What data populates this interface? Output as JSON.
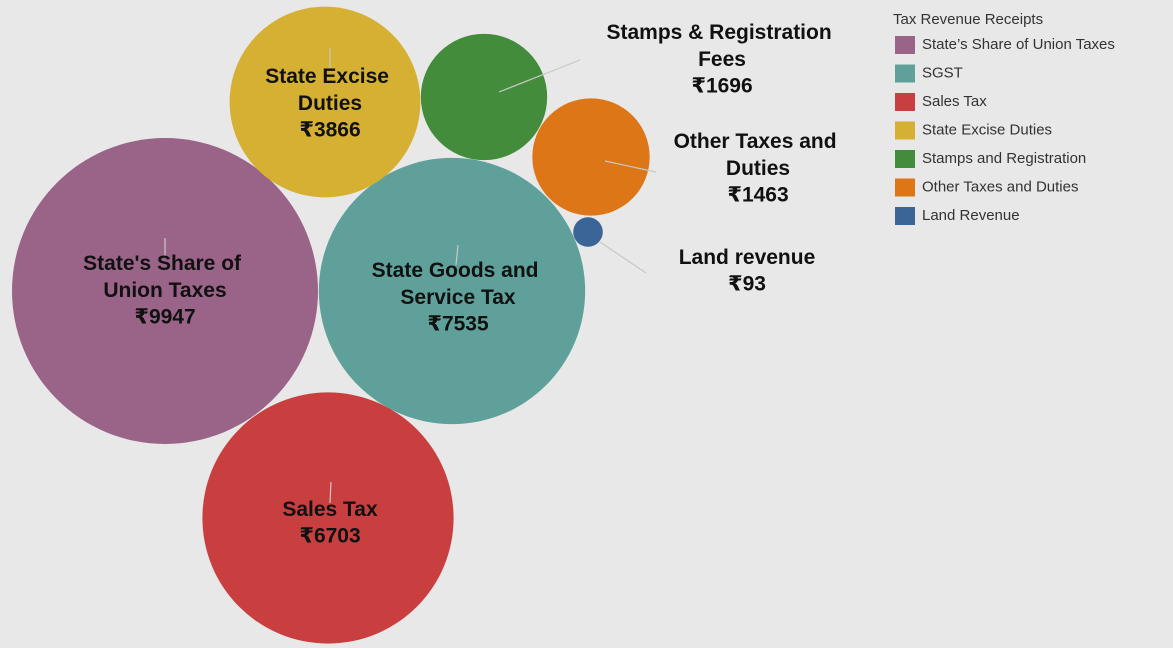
{
  "chart_data": {
    "type": "bubble",
    "legend_title": "Tax Revenue Receipts",
    "legend_position": "top-right",
    "series": [
      {
        "name": "State’s Share of Union Taxes",
        "label": "State's Share of Union Taxes",
        "color": "#9a6488",
        "values": [
          9947
        ],
        "value_labels": [
          "₹9947"
        ]
      },
      {
        "name": "SGST",
        "label": "State Goods and Service Tax",
        "color": "#5fa19a",
        "values": [
          7535
        ],
        "value_labels": [
          "₹7535"
        ]
      },
      {
        "name": "Sales Tax",
        "label": "Sales Tax",
        "color": "#c93f40",
        "values": [
          6703
        ],
        "value_labels": [
          "₹6703"
        ]
      },
      {
        "name": "State Excise Duties",
        "label": "State Excise Duties",
        "color": "#d6b032",
        "values": [
          3866
        ],
        "value_labels": [
          "₹3866"
        ]
      },
      {
        "name": "Stamps and Registration",
        "label": "Stamps & Registration Fees",
        "color": "#438c3b",
        "values": [
          1696
        ],
        "value_labels": [
          "₹1696"
        ]
      },
      {
        "name": "Other Taxes and Duties",
        "label": "Other Taxes and Duties",
        "color": "#dd7617",
        "values": [
          1463
        ],
        "value_labels": [
          "₹1463"
        ]
      },
      {
        "name": "Land Revenue",
        "label": "Land revenue",
        "color": "#3a6596",
        "values": [
          93
        ],
        "value_labels": [
          "₹93"
        ]
      }
    ]
  }
}
